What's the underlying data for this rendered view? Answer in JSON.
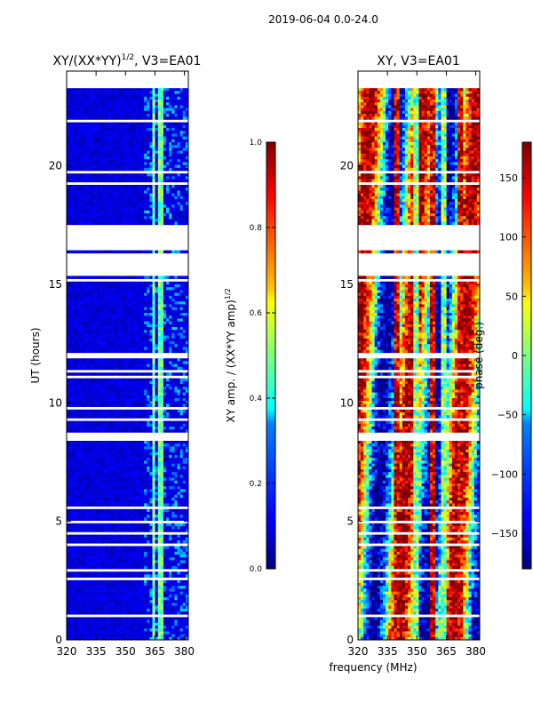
{
  "figure": {
    "suptitle": "2019-06-04 0.0-24.0",
    "xlabel": "frequency (MHz)",
    "ylabel": "UT (hours)"
  },
  "chart_data": [
    {
      "type": "heatmap",
      "panel": "amp",
      "title_main": "XY/(XX*YY)",
      "title_sup": "1/2",
      "title_tail": ", V3=EA01",
      "xlim": [
        320,
        382
      ],
      "ylim": [
        0,
        24
      ],
      "x_ticks": [
        320,
        335,
        350,
        365,
        380
      ],
      "y_ticks": [
        0,
        5,
        10,
        15,
        20
      ],
      "flagged_hour_bands": [
        [
          16.4,
          17.5
        ],
        [
          15.35,
          16.2
        ],
        [
          8.45,
          8.8
        ]
      ],
      "bright_channel_bands_mhz": [
        [
          363,
          365.5
        ],
        [
          366.5,
          370
        ]
      ],
      "colorbar": {
        "label_main": "XY amp. / (XX*YY amp)",
        "label_sup": "1/2",
        "min": 0.0,
        "max": 1.0,
        "ticks": [
          "0.0",
          "0.2",
          "0.4",
          "0.6",
          "0.8",
          "1.0"
        ],
        "colormap": "jet"
      }
    },
    {
      "type": "heatmap",
      "panel": "phase",
      "title_main": "XY, V3=EA01",
      "xlim": [
        320,
        382
      ],
      "ylim": [
        0,
        24
      ],
      "x_ticks": [
        320,
        335,
        350,
        365,
        380
      ],
      "y_ticks": [
        0,
        5,
        10,
        15,
        20
      ],
      "flagged_hour_bands": [
        [
          16.4,
          17.5
        ],
        [
          15.35,
          16.2
        ],
        [
          8.45,
          8.8
        ]
      ],
      "stripe_channels_mhz": [
        340,
        350,
        358,
        364,
        372
      ],
      "colorbar": {
        "label": "phase (deg.)",
        "min": -180,
        "max": 180,
        "ticks": [
          "−150",
          "−100",
          "−50",
          "0",
          "50",
          "100",
          "150"
        ],
        "tick_values": [
          -150,
          -100,
          -50,
          0,
          50,
          100,
          150
        ],
        "colormap": "jet"
      }
    }
  ],
  "colors": {
    "jet_dark_blue": "#00007f",
    "jet_blue": "#0000ff",
    "jet_cyan": "#00ffff",
    "jet_yellow": "#ffff00",
    "jet_red": "#ff0000",
    "jet_dark_red": "#7f0000"
  }
}
